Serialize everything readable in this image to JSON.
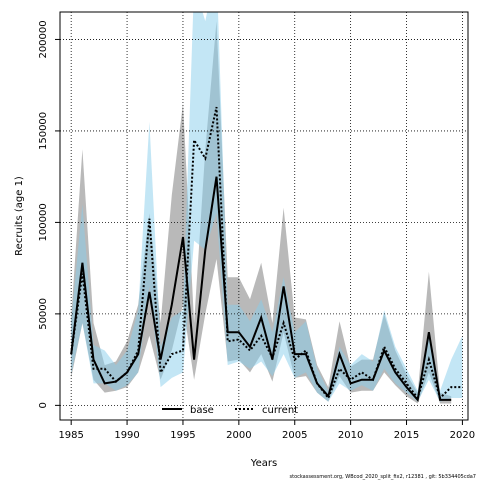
{
  "chart_data": {
    "type": "line",
    "xlabel": "Years",
    "ylabel": "Recruits (age 1)",
    "xlim": [
      1984,
      2020.5
    ],
    "ylim": [
      -8000,
      215000
    ],
    "xticks": [
      1985,
      1990,
      1995,
      2000,
      2005,
      2010,
      2015,
      2020
    ],
    "yticks": [
      0,
      50000,
      100000,
      150000,
      200000
    ],
    "grid": true,
    "legend_position": "bottom-center",
    "footnote": "stockassessment.org,  WBcod_2020_split_fix2,  r12381 ,  git: 5b334405cda7",
    "x": [
      1985,
      1986,
      1987,
      1988,
      1989,
      1990,
      1991,
      1992,
      1993,
      1994,
      1995,
      1996,
      1997,
      1998,
      1999,
      2000,
      2001,
      2002,
      2003,
      2004,
      2005,
      2006,
      2007,
      2008,
      2009,
      2010,
      2011,
      2012,
      2013,
      2014,
      2015,
      2016,
      2017,
      2018,
      2019,
      2020
    ],
    "series": [
      {
        "name": "base",
        "color": "#000000",
        "fill": "#808080",
        "values": [
          28000,
          78000,
          25000,
          12000,
          13000,
          18000,
          28000,
          62000,
          25000,
          55000,
          92000,
          25000,
          85000,
          125000,
          40000,
          40000,
          32000,
          48000,
          25000,
          65000,
          28000,
          28000,
          12000,
          5000,
          28000,
          12000,
          14000,
          14000,
          30000,
          18000,
          10000,
          3000,
          40000,
          3000,
          3000,
          null
        ],
        "lower": [
          15000,
          45000,
          14000,
          7000,
          8000,
          10000,
          18000,
          38000,
          14000,
          30000,
          55000,
          14000,
          50000,
          80000,
          24000,
          25000,
          18000,
          28000,
          13000,
          40000,
          15000,
          16000,
          7000,
          2000,
          16000,
          7000,
          8000,
          8000,
          18000,
          11000,
          5000,
          1000,
          18000,
          1000,
          1000,
          null
        ],
        "upper": [
          48000,
          140000,
          45000,
          22000,
          24000,
          35000,
          55000,
          105000,
          45000,
          115000,
          165000,
          45000,
          140000,
          210000,
          70000,
          70000,
          58000,
          78000,
          45000,
          108000,
          48000,
          47000,
          22000,
          10000,
          46000,
          21000,
          25000,
          25000,
          50000,
          30000,
          17000,
          7000,
          73000,
          7000,
          5000,
          null
        ]
      },
      {
        "name": "current",
        "color": "#000000",
        "fill": "#87ceeb",
        "values": [
          28000,
          72000,
          20000,
          20000,
          13000,
          18000,
          30000,
          102000,
          18000,
          28000,
          30000,
          145000,
          135000,
          163000,
          35000,
          36000,
          30000,
          38000,
          26000,
          45000,
          25000,
          30000,
          12000,
          4000,
          20000,
          14000,
          18000,
          14000,
          32000,
          20000,
          12000,
          4000,
          25000,
          4000,
          10000,
          10000
        ],
        "lower": [
          17000,
          45000,
          12000,
          12000,
          8000,
          11000,
          18000,
          65000,
          10000,
          15000,
          18000,
          90000,
          85000,
          105000,
          22000,
          24000,
          20000,
          24000,
          16000,
          28000,
          15000,
          18000,
          7000,
          2000,
          12000,
          8000,
          11000,
          8000,
          20000,
          12000,
          7000,
          2000,
          14000,
          2000,
          4000,
          4000
        ],
        "upper": [
          46000,
          110000,
          33000,
          30000,
          22000,
          30000,
          52000,
          155000,
          32000,
          48000,
          52000,
          230000,
          210000,
          240000,
          55000,
          55000,
          46000,
          58000,
          40000,
          70000,
          40000,
          46000,
          20000,
          8000,
          32000,
          22000,
          28000,
          24000,
          52000,
          32000,
          20000,
          8000,
          40000,
          8000,
          25000,
          38000
        ]
      }
    ]
  }
}
